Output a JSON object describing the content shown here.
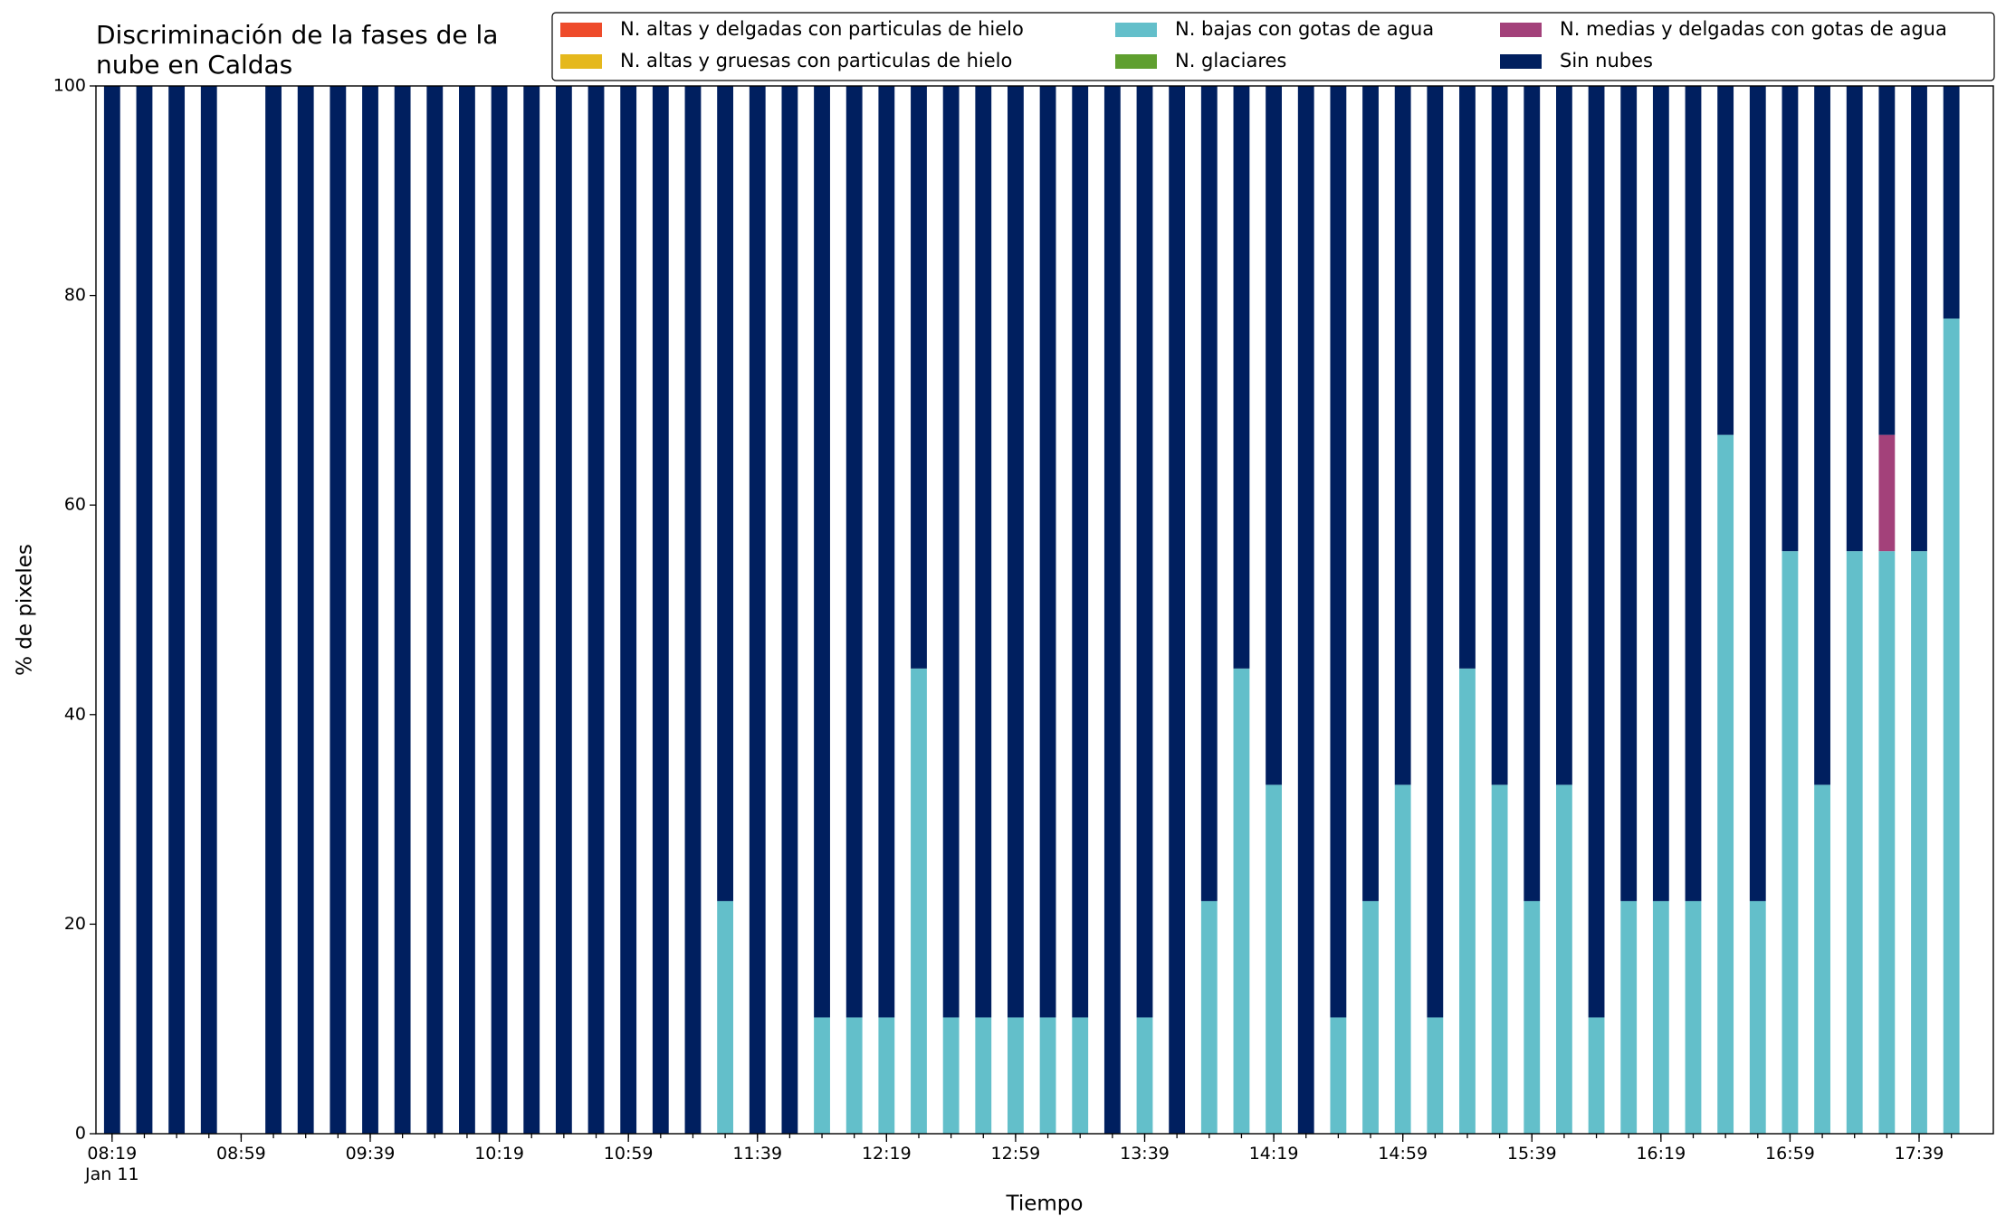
{
  "chart_data": {
    "type": "stacked_bar",
    "title": "Discriminación de la fases de la\nnube en Caldas",
    "xlabel": "Tiempo",
    "ylabel": "% de pixeles",
    "x": [
      "08:19",
      "08:29",
      "08:39",
      "08:49",
      "08:59",
      "09:09",
      "09:19",
      "09:29",
      "09:39",
      "09:49",
      "09:59",
      "10:09",
      "10:19",
      "10:29",
      "10:39",
      "10:49",
      "10:59",
      "11:09",
      "11:19",
      "11:29",
      "11:39",
      "11:49",
      "11:59",
      "12:09",
      "12:19",
      "12:29",
      "12:39",
      "12:49",
      "12:59",
      "13:09",
      "13:19",
      "13:29",
      "13:39",
      "13:49",
      "13:59",
      "14:09",
      "14:19",
      "14:29",
      "14:39",
      "14:49",
      "14:59",
      "15:09",
      "15:19",
      "15:29",
      "15:39",
      "15:49",
      "15:59",
      "16:09",
      "16:19",
      "16:29",
      "16:39",
      "16:49",
      "16:59",
      "17:09",
      "17:19",
      "17:29",
      "17:39",
      "17:49"
    ],
    "xlim": [
      "08:14",
      "18:02"
    ],
    "xticks": [
      {
        "value": "08:19",
        "label": "08:19\nJan 11"
      },
      "08:59",
      "09:39",
      "10:19",
      "10:59",
      "11:39",
      "12:19",
      "12:59",
      "13:39",
      "14:19",
      "14:59",
      "15:39",
      "16:19",
      "16:59",
      "17:39"
    ],
    "ylim": [
      0,
      100
    ],
    "yticks": [
      0,
      20,
      40,
      60,
      80,
      100
    ],
    "legend": "upper right",
    "series": [
      {
        "name": "N. altas y delgadas con particulas de hielo",
        "color": "#ee4b2b",
        "values": [
          0,
          0,
          0,
          0,
          null,
          0,
          0,
          0,
          0,
          0,
          0,
          0,
          0,
          0,
          0,
          0,
          0,
          0,
          0,
          0,
          0,
          0,
          0,
          0,
          0,
          0,
          0,
          0,
          0,
          0,
          0,
          0,
          0,
          0,
          0,
          0,
          0,
          0,
          0,
          0,
          0,
          0,
          0,
          0,
          0,
          0,
          0,
          0,
          0,
          0,
          0,
          0,
          0,
          0,
          0,
          0,
          0,
          0
        ]
      },
      {
        "name": "N. altas y gruesas con particulas de hielo",
        "color": "#e5b81d",
        "values": [
          0,
          0,
          0,
          0,
          null,
          0,
          0,
          0,
          0,
          0,
          0,
          0,
          0,
          0,
          0,
          0,
          0,
          0,
          0,
          0,
          0,
          0,
          0,
          0,
          0,
          0,
          0,
          0,
          0,
          0,
          0,
          0,
          0,
          0,
          0,
          0,
          0,
          0,
          0,
          0,
          0,
          0,
          0,
          0,
          0,
          0,
          0,
          0,
          0,
          0,
          0,
          0,
          0,
          0,
          0,
          0,
          0,
          0
        ]
      },
      {
        "name": "N. bajas con gotas de agua",
        "color": "#63bfca",
        "values": [
          0,
          0,
          0,
          0,
          null,
          0,
          0,
          0,
          0,
          0,
          0,
          0,
          0,
          0,
          0,
          0,
          0,
          0,
          0,
          22.2,
          0,
          0,
          11.1,
          11.1,
          11.1,
          44.4,
          11.1,
          11.1,
          11.1,
          11.1,
          11.1,
          0,
          11.1,
          0,
          22.2,
          44.4,
          33.3,
          0,
          11.1,
          22.2,
          33.3,
          11.1,
          44.4,
          33.3,
          22.2,
          33.3,
          11.1,
          22.2,
          22.2,
          22.2,
          66.7,
          22.2,
          55.6,
          33.3,
          55.6,
          55.6,
          55.6,
          77.8
        ]
      },
      {
        "name": "N. glaciares",
        "color": "#5f9f2f",
        "values": [
          0,
          0,
          0,
          0,
          null,
          0,
          0,
          0,
          0,
          0,
          0,
          0,
          0,
          0,
          0,
          0,
          0,
          0,
          0,
          0,
          0,
          0,
          0,
          0,
          0,
          0,
          0,
          0,
          0,
          0,
          0,
          0,
          0,
          0,
          0,
          0,
          0,
          0,
          0,
          0,
          0,
          0,
          0,
          0,
          0,
          0,
          0,
          0,
          0,
          0,
          0,
          0,
          0,
          0,
          0,
          0,
          0,
          0
        ]
      },
      {
        "name": "N. medias y delgadas con gotas de agua",
        "color": "#a3417a",
        "values": [
          0,
          0,
          0,
          0,
          null,
          0,
          0,
          0,
          0,
          0,
          0,
          0,
          0,
          0,
          0,
          0,
          0,
          0,
          0,
          0,
          0,
          0,
          0,
          0,
          0,
          0,
          0,
          0,
          0,
          0,
          0,
          0,
          0,
          0,
          0,
          0,
          0,
          0,
          0,
          0,
          0,
          0,
          0,
          0,
          0,
          0,
          0,
          0,
          0,
          0,
          0,
          0,
          0,
          0,
          0,
          11.1,
          0,
          0
        ]
      },
      {
        "name": "Sin nubes",
        "color": "#001f5f",
        "values": [
          100,
          100,
          100,
          100,
          null,
          100,
          100,
          100,
          100,
          100,
          100,
          100,
          100,
          100,
          100,
          100,
          100,
          100,
          100,
          77.8,
          100,
          100,
          88.9,
          88.9,
          88.9,
          55.6,
          88.9,
          88.9,
          88.9,
          88.9,
          88.9,
          100,
          88.9,
          100,
          77.8,
          55.6,
          66.7,
          100,
          88.9,
          77.8,
          66.7,
          88.9,
          55.6,
          66.7,
          77.8,
          66.7,
          88.9,
          77.8,
          77.8,
          77.8,
          33.3,
          77.8,
          44.4,
          66.7,
          44.4,
          33.3,
          44.4,
          22.2
        ]
      }
    ]
  }
}
